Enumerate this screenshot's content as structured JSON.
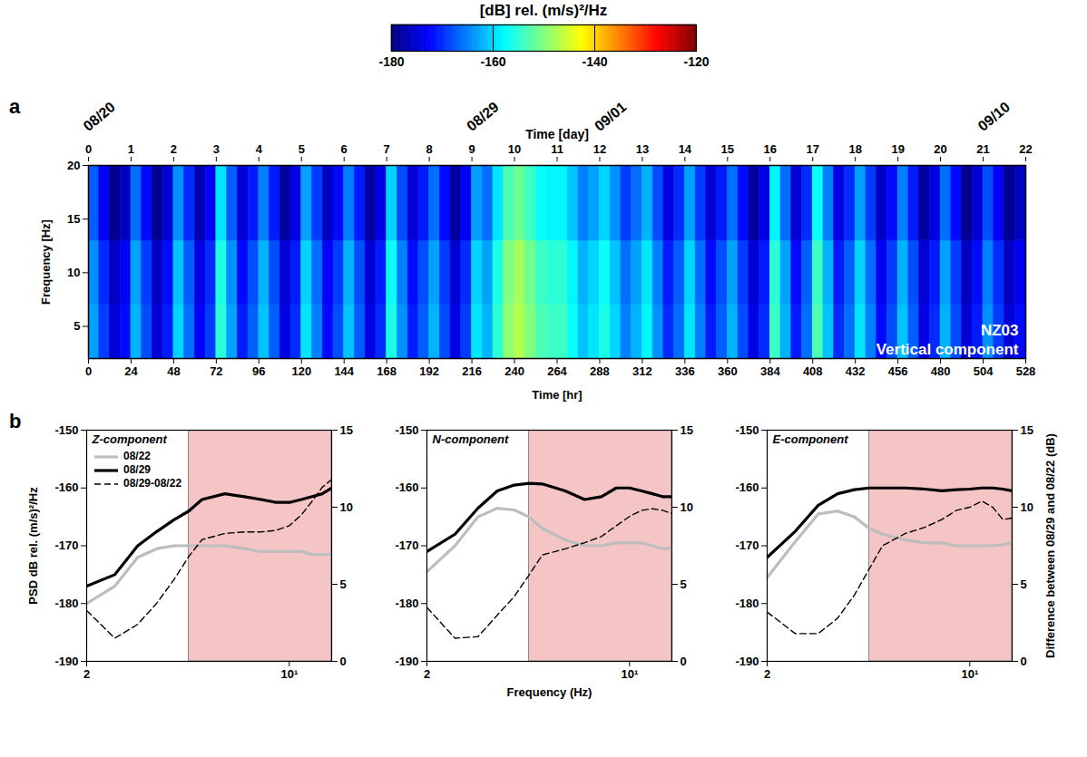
{
  "chart_data": [
    {
      "type": "heatmap",
      "panel": "a",
      "xlabel": "Time [hr]",
      "xlim": [
        0,
        528
      ],
      "xticks": [
        0,
        24,
        48,
        72,
        96,
        120,
        144,
        168,
        192,
        216,
        240,
        264,
        288,
        312,
        336,
        360,
        384,
        408,
        432,
        456,
        480,
        504,
        528
      ],
      "ylabel": "Frequency [Hz]",
      "ylim": [
        2,
        20
      ],
      "yticks": [
        5,
        10,
        15,
        20
      ],
      "top_axis": {
        "label": "Time [day]",
        "xlim": [
          0,
          22
        ],
        "xticks": [
          0,
          1,
          2,
          3,
          4,
          5,
          6,
          7,
          8,
          9,
          10,
          11,
          12,
          13,
          14,
          15,
          16,
          17,
          18,
          19,
          20,
          21,
          22
        ],
        "dates": [
          {
            "value": 0,
            "label": "08/20"
          },
          {
            "value": 9,
            "label": "08/29"
          },
          {
            "value": 12,
            "label": "09/01"
          },
          {
            "value": 21,
            "label": "09/10"
          }
        ]
      },
      "annotations": [
        "NZ03",
        "Vertical component"
      ],
      "time_bins": [
        0,
        6,
        12,
        18,
        24,
        30,
        36,
        42,
        48,
        54,
        60,
        66,
        72,
        78,
        84,
        90,
        96,
        102,
        108,
        114,
        120,
        126,
        132,
        138,
        144,
        150,
        156,
        162,
        168,
        174,
        180,
        186,
        192,
        198,
        204,
        210,
        216,
        222,
        228,
        234,
        240,
        246,
        252,
        258,
        264,
        270,
        276,
        282,
        288,
        294,
        300,
        306,
        312,
        318,
        324,
        330,
        336,
        342,
        348,
        354,
        360,
        366,
        372,
        378,
        384,
        390,
        396,
        402,
        408,
        414,
        420,
        426,
        432,
        438,
        444,
        450,
        456,
        462,
        468,
        474,
        480,
        486,
        492,
        498,
        504,
        510,
        516,
        522,
        528
      ],
      "freq_bins": [
        2,
        7,
        13,
        20
      ],
      "cells": [
        [
          -163,
          -169,
          -175,
          -172,
          -162,
          -168,
          -175,
          -171,
          -160,
          -166,
          -173,
          -169,
          -155,
          -163,
          -171,
          -167,
          -161,
          -167,
          -174,
          -170,
          -159,
          -165,
          -172,
          -168,
          -161,
          -167,
          -174,
          -170,
          -156,
          -164,
          -171,
          -167,
          -162,
          -168,
          -174,
          -169,
          -159,
          -162,
          -155,
          -149,
          -147,
          -150,
          -153,
          -154,
          -154,
          -157,
          -161,
          -159,
          -156,
          -160,
          -165,
          -162,
          -158,
          -164,
          -170,
          -166,
          -159,
          -165,
          -171,
          -167,
          -162,
          -168,
          -174,
          -170,
          -154,
          -162,
          -171,
          -166,
          -153,
          -161,
          -170,
          -166,
          -159,
          -165,
          -172,
          -168,
          -161,
          -167,
          -174,
          -170,
          -162,
          -168,
          -175,
          -171,
          -164,
          -169,
          -175,
          -172
        ],
        [
          -164,
          -170,
          -176,
          -173,
          -163,
          -169,
          -176,
          -172,
          -161,
          -167,
          -174,
          -170,
          -156,
          -164,
          -172,
          -168,
          -162,
          -168,
          -175,
          -171,
          -160,
          -166,
          -173,
          -169,
          -162,
          -168,
          -175,
          -171,
          -157,
          -165,
          -172,
          -168,
          -163,
          -169,
          -175,
          -170,
          -160,
          -163,
          -156,
          -150,
          -148,
          -151,
          -154,
          -155,
          -155,
          -158,
          -162,
          -160,
          -157,
          -161,
          -166,
          -163,
          -159,
          -165,
          -171,
          -167,
          -160,
          -166,
          -172,
          -168,
          -163,
          -169,
          -175,
          -171,
          -155,
          -163,
          -172,
          -167,
          -154,
          -162,
          -171,
          -167,
          -160,
          -166,
          -173,
          -169,
          -162,
          -168,
          -175,
          -171,
          -163,
          -169,
          -176,
          -172,
          -165,
          -170,
          -176,
          -173
        ],
        [
          -167,
          -173,
          -179,
          -176,
          -166,
          -172,
          -179,
          -175,
          -164,
          -170,
          -177,
          -173,
          -159,
          -167,
          -175,
          -171,
          -165,
          -171,
          -178,
          -174,
          -163,
          -169,
          -176,
          -172,
          -165,
          -171,
          -178,
          -174,
          -160,
          -168,
          -175,
          -171,
          -166,
          -172,
          -178,
          -173,
          -163,
          -166,
          -159,
          -153,
          -151,
          -154,
          -157,
          -158,
          -158,
          -161,
          -165,
          -163,
          -160,
          -164,
          -169,
          -166,
          -162,
          -168,
          -174,
          -170,
          -163,
          -169,
          -175,
          -171,
          -166,
          -172,
          -178,
          -174,
          -158,
          -166,
          -175,
          -170,
          -157,
          -165,
          -174,
          -170,
          -163,
          -169,
          -176,
          -172,
          -165,
          -171,
          -178,
          -174,
          -166,
          -172,
          -179,
          -175,
          -168,
          -173,
          -179,
          -176
        ]
      ],
      "colorbar": {
        "label": "[dB] rel. (m/s)²/Hz",
        "range": [
          -180,
          -120
        ],
        "ticks": [
          -180,
          -160,
          -140,
          -120
        ]
      }
    },
    {
      "type": "line",
      "panel": "b",
      "title": "Z-component",
      "log": "x",
      "x": [
        2,
        2.5,
        3,
        3.5,
        4,
        4.5,
        5,
        6,
        7,
        8,
        9,
        10,
        11,
        12,
        13,
        14
      ],
      "xlim": [
        2,
        14
      ],
      "xticks": [
        2,
        {
          "value": 10,
          "label": "10¹"
        }
      ],
      "ylabel": "PSD dB rel. (m/s)²/Hz",
      "ylim": [
        -190,
        -150
      ],
      "yticks": [
        -190,
        -180,
        -170,
        -160,
        -150
      ],
      "y2lim": [
        0,
        15
      ],
      "y2ticks": [
        0,
        5,
        10,
        15
      ],
      "shaded_x": [
        4.5,
        14
      ],
      "legend": "top-left",
      "series": [
        {
          "name": "08/22",
          "color": "#bdbdbd",
          "values": [
            -180,
            -177,
            -172,
            -170.5,
            -170,
            -170,
            -170,
            -170,
            -170.5,
            -171,
            -171,
            -171,
            -171,
            -171.5,
            -171.5,
            -171.5
          ]
        },
        {
          "name": "08/29",
          "color": "#000000",
          "values": [
            -177,
            -175,
            -170,
            -167.5,
            -165.5,
            -164,
            -162,
            -161,
            -161.5,
            -162,
            -162.5,
            -162.5,
            -162,
            -161.5,
            -161,
            -160
          ]
        },
        {
          "name": "08/29-08/22",
          "color": "#000000",
          "line_style": "dashed",
          "axis": "y2",
          "values": [
            3.3,
            1.5,
            2.4,
            3.8,
            5.3,
            6.8,
            7.9,
            8.3,
            8.4,
            8.4,
            8.5,
            8.8,
            9.5,
            10.4,
            11.3,
            11.8
          ]
        }
      ]
    },
    {
      "type": "line",
      "title": "N-component",
      "log": "x",
      "x": [
        2,
        2.5,
        3,
        3.5,
        4,
        4.5,
        5,
        6,
        7,
        8,
        9,
        10,
        11,
        12,
        13,
        14
      ],
      "xlabel": "Frequency (Hz)",
      "xlim": [
        2,
        14
      ],
      "xticks": [
        2,
        {
          "value": 10,
          "label": "10¹"
        }
      ],
      "ylim": [
        -190,
        -150
      ],
      "yticks": [
        -190,
        -180,
        -170,
        -160,
        -150
      ],
      "y2lim": [
        0,
        15
      ],
      "y2ticks": [
        0,
        5,
        10,
        15
      ],
      "shaded_x": [
        4.5,
        14
      ],
      "series": [
        {
          "name": "08/22",
          "color": "#bdbdbd",
          "values": [
            -174.5,
            -170,
            -165,
            -163.5,
            -163.8,
            -165,
            -167,
            -169,
            -170,
            -170,
            -169.5,
            -169.5,
            -169.5,
            -170,
            -170.5,
            -170.5
          ]
        },
        {
          "name": "08/29",
          "color": "#000000",
          "values": [
            -171,
            -168,
            -163.5,
            -160.5,
            -159.5,
            -159.2,
            -159.3,
            -160.5,
            -162,
            -161.5,
            -160,
            -160,
            -160.5,
            -161,
            -161.5,
            -161.5
          ]
        },
        {
          "name": "08/29-08/22",
          "color": "#000000",
          "line_style": "dashed",
          "axis": "y2",
          "values": [
            3.5,
            1.5,
            1.6,
            3.0,
            4.2,
            5.6,
            6.9,
            7.3,
            7.7,
            8.1,
            8.8,
            9.4,
            9.8,
            9.9,
            9.8,
            9.6
          ]
        }
      ]
    },
    {
      "type": "line",
      "title": "E-component",
      "log": "x",
      "x": [
        2,
        2.5,
        3,
        3.5,
        4,
        4.5,
        5,
        6,
        7,
        8,
        9,
        10,
        11,
        12,
        13,
        14
      ],
      "xlim": [
        2,
        14
      ],
      "xticks": [
        2,
        {
          "value": 10,
          "label": "10¹"
        }
      ],
      "ylim": [
        -190,
        -150
      ],
      "yticks": [
        -190,
        -180,
        -170,
        -160,
        -150
      ],
      "y2label": "Difference between 08/29 and 08/22 (dB)",
      "y2lim": [
        0,
        15
      ],
      "y2ticks": [
        0,
        5,
        10,
        15
      ],
      "shaded_x": [
        4.5,
        14
      ],
      "series": [
        {
          "name": "08/22",
          "color": "#bdbdbd",
          "values": [
            -175.5,
            -169.3,
            -164.5,
            -164,
            -165,
            -167,
            -168,
            -169,
            -169.5,
            -169.5,
            -170,
            -170,
            -170,
            -170,
            -169.8,
            -169.5
          ]
        },
        {
          "name": "08/29",
          "color": "#000000",
          "values": [
            -172,
            -167.5,
            -163,
            -161,
            -160.3,
            -160,
            -160,
            -160,
            -160.2,
            -160.5,
            -160.3,
            -160.2,
            -160,
            -160,
            -160.2,
            -160.5
          ]
        },
        {
          "name": "08/29-08/22",
          "color": "#000000",
          "line_style": "dashed",
          "axis": "y2",
          "values": [
            3.2,
            1.8,
            1.8,
            2.8,
            4.3,
            6.0,
            7.5,
            8.3,
            8.7,
            9.2,
            9.8,
            10,
            10.4,
            10,
            9.2,
            9.3
          ]
        }
      ]
    }
  ]
}
